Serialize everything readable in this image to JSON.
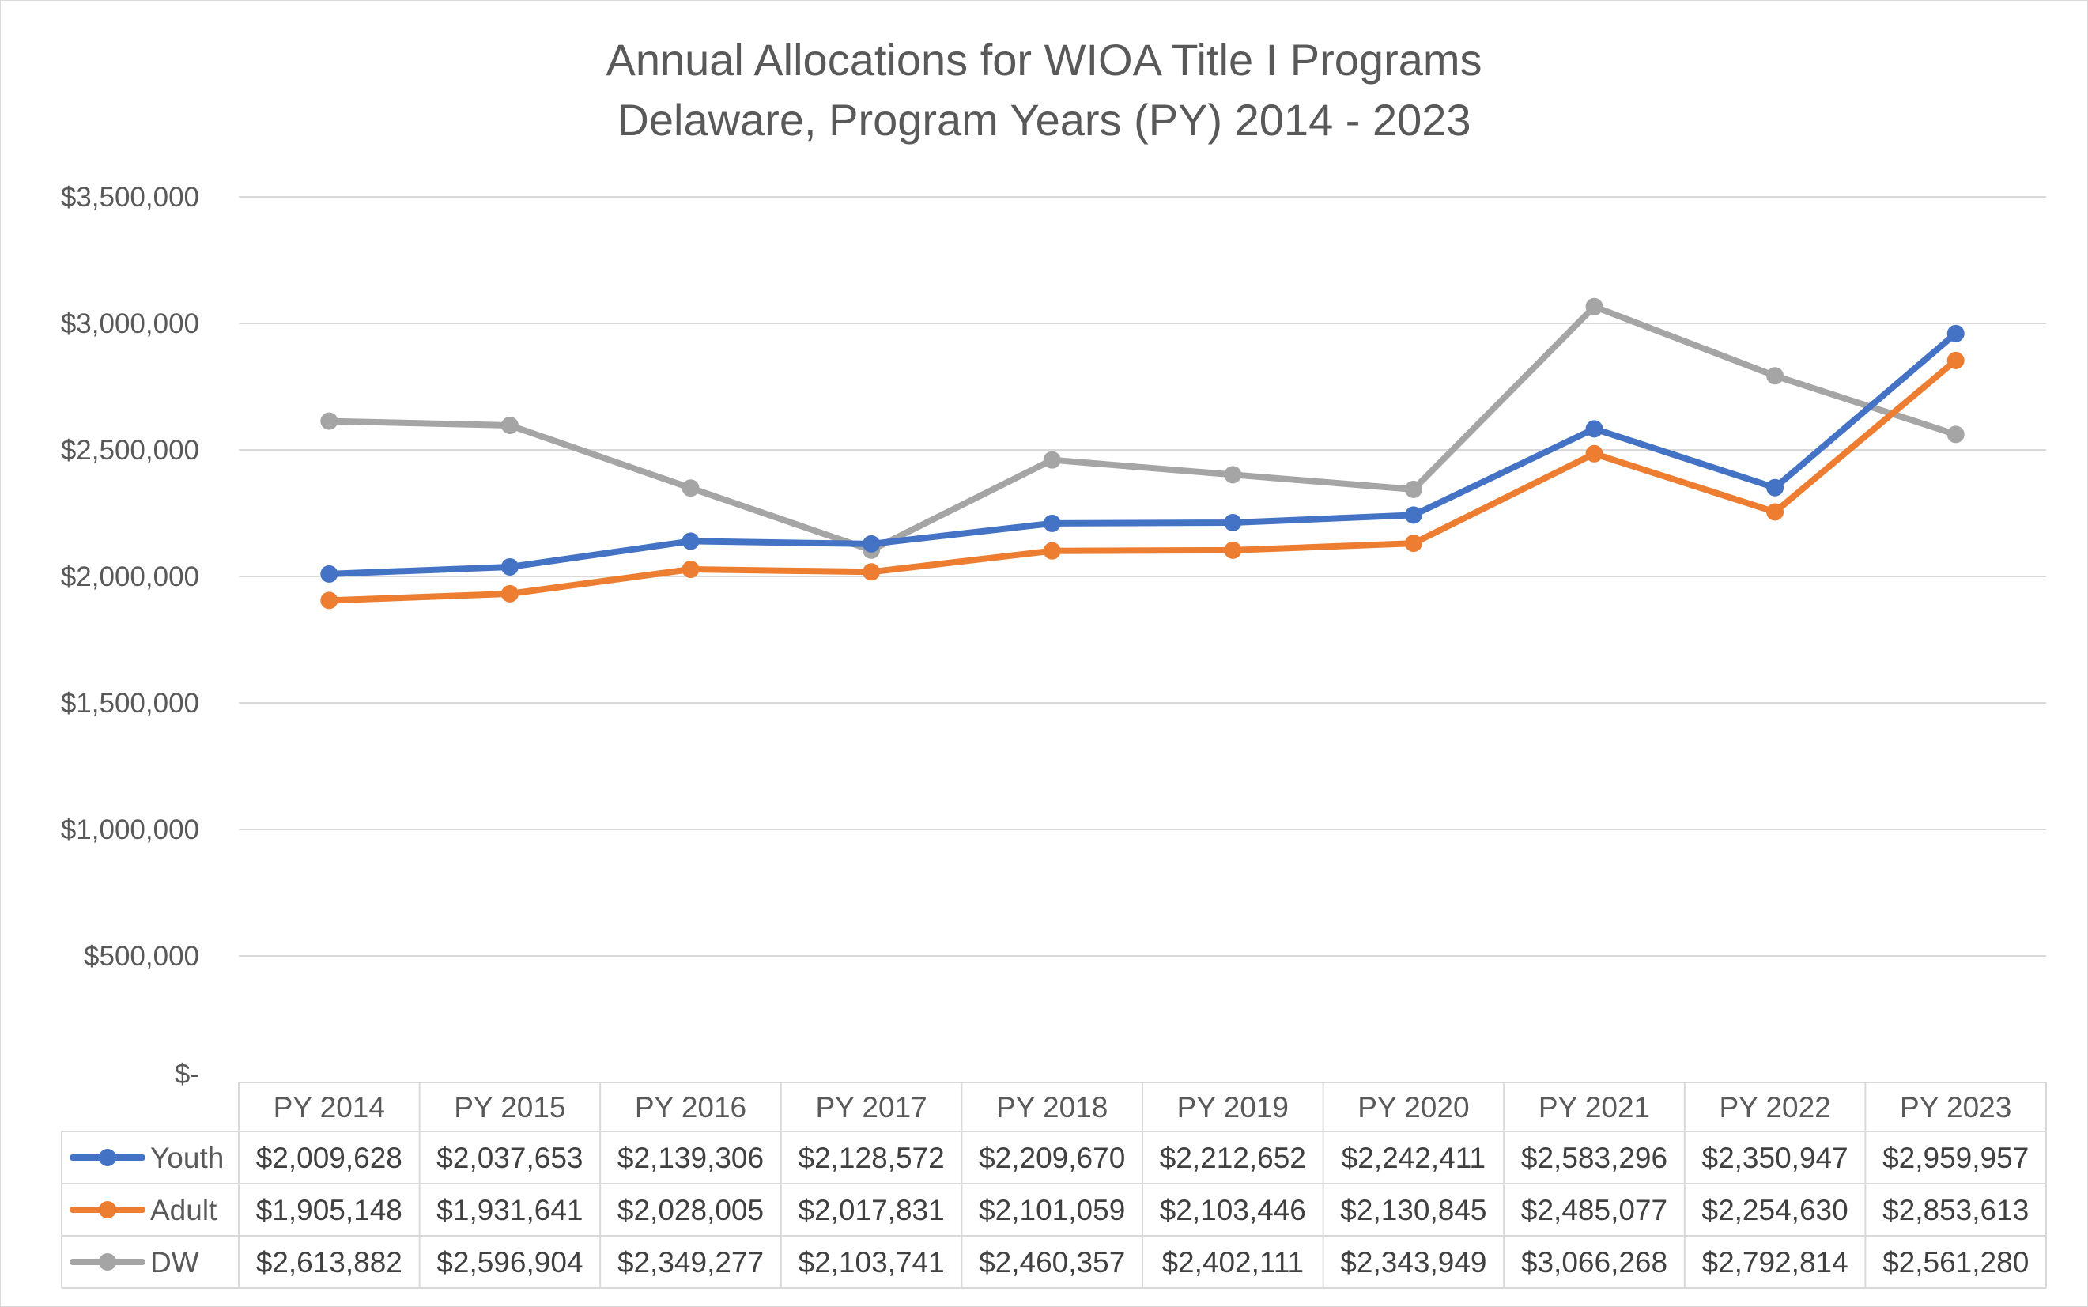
{
  "chart_data": {
    "type": "line",
    "title": "Annual Allocations for WIOA Title I Programs",
    "subtitle": "Delaware, Program Years (PY) 2014 - 2023",
    "categories": [
      "PY 2014",
      "PY 2015",
      "PY 2016",
      "PY 2017",
      "PY 2018",
      "PY 2019",
      "PY 2020",
      "PY 2021",
      "PY 2022",
      "PY 2023"
    ],
    "ylim": [
      0,
      3500000
    ],
    "yticks": [
      0,
      500000,
      1000000,
      1500000,
      2000000,
      2500000,
      3000000,
      3500000
    ],
    "ytick_labels": [
      "$-",
      "$500,000",
      "$1,000,000",
      "$1,500,000",
      "$2,000,000",
      "$2,500,000",
      "$3,000,000",
      "$3,500,000"
    ],
    "grid": true,
    "legend": "data-table",
    "series": [
      {
        "name": "Youth",
        "color": "#4472C4",
        "values": [
          2009628,
          2037653,
          2139306,
          2128572,
          2209670,
          2212652,
          2242411,
          2583296,
          2350947,
          2959957
        ],
        "labels": [
          "$2,009,628",
          "$2,037,653",
          "$2,139,306",
          "$2,128,572",
          "$2,209,670",
          "$2,212,652",
          "$2,242,411",
          "$2,583,296",
          "$2,350,947",
          "$2,959,957"
        ]
      },
      {
        "name": "Adult",
        "color": "#ED7D31",
        "values": [
          1905148,
          1931641,
          2028005,
          2017831,
          2101059,
          2103446,
          2130845,
          2485077,
          2254630,
          2853613
        ],
        "labels": [
          "$1,905,148",
          "$1,931,641",
          "$2,028,005",
          "$2,017,831",
          "$2,101,059",
          "$2,103,446",
          "$2,130,845",
          "$2,485,077",
          "$2,254,630",
          "$2,853,613"
        ]
      },
      {
        "name": "DW",
        "color": "#A5A5A5",
        "values": [
          2613882,
          2596904,
          2349277,
          2103741,
          2460357,
          2402111,
          2343949,
          3066268,
          2792814,
          2561280
        ],
        "labels": [
          "$2,613,882",
          "$2,596,904",
          "$2,349,277",
          "$2,103,741",
          "$2,460,357",
          "$2,402,111",
          "$2,343,949",
          "$3,066,268",
          "$2,792,814",
          "$2,561,280"
        ]
      }
    ],
    "drawing_order": [
      2,
      1,
      0
    ]
  }
}
